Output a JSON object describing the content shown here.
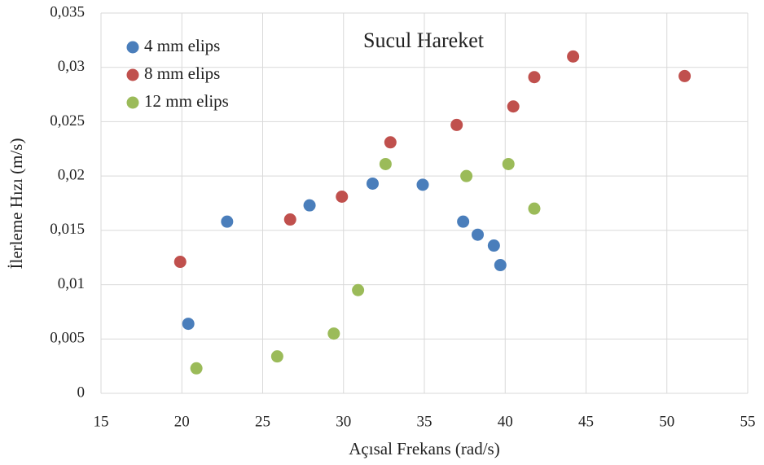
{
  "chart_data": {
    "type": "scatter",
    "title": "Sucul Hareket",
    "x_label": "Açısal Frekans (rad/s)",
    "y_label": "İlerleme Hızı (m/s)",
    "xlim": [
      15,
      55
    ],
    "xticks": [
      15,
      20,
      25,
      30,
      35,
      40,
      45,
      50,
      55
    ],
    "ylim": [
      0,
      0.035
    ],
    "yticks": [
      0,
      {
        "value": 0.005,
        "label": "0,005"
      },
      {
        "value": 0.01,
        "label": "0,01"
      },
      {
        "value": 0.015,
        "label": "0,015"
      },
      {
        "value": 0.02,
        "label": "0,02"
      },
      {
        "value": 0.025,
        "label": "0,025"
      },
      {
        "value": 0.03,
        "label": "0,03"
      },
      {
        "value": 0.035,
        "label": "0,035"
      }
    ],
    "grid": true,
    "legend": "upper-left",
    "series": [
      {
        "name": "4 mm elips",
        "color": "#4a7ebb",
        "x": [
          20.4,
          22.8,
          27.9,
          31.8,
          34.9,
          37.4,
          38.3,
          39.3,
          39.7
        ],
        "values": [
          0.0064,
          0.0158,
          0.0173,
          0.0193,
          0.0192,
          0.0158,
          0.0146,
          0.0136,
          0.0118
        ]
      },
      {
        "name": "8 mm elips",
        "color": "#c0504d",
        "x": [
          19.9,
          26.7,
          29.9,
          32.9,
          37.0,
          40.5,
          41.8,
          44.2,
          51.1
        ],
        "values": [
          0.0121,
          0.016,
          0.0181,
          0.0231,
          0.0247,
          0.0264,
          0.0291,
          0.031,
          0.0292
        ]
      },
      {
        "name": "12 mm elips",
        "color": "#9bbb59",
        "x": [
          20.9,
          25.9,
          29.4,
          30.9,
          32.6,
          37.6,
          40.2,
          41.8
        ],
        "values": [
          0.0023,
          0.0034,
          0.0055,
          0.0095,
          0.0211,
          0.02,
          0.0211,
          0.017
        ]
      }
    ]
  }
}
